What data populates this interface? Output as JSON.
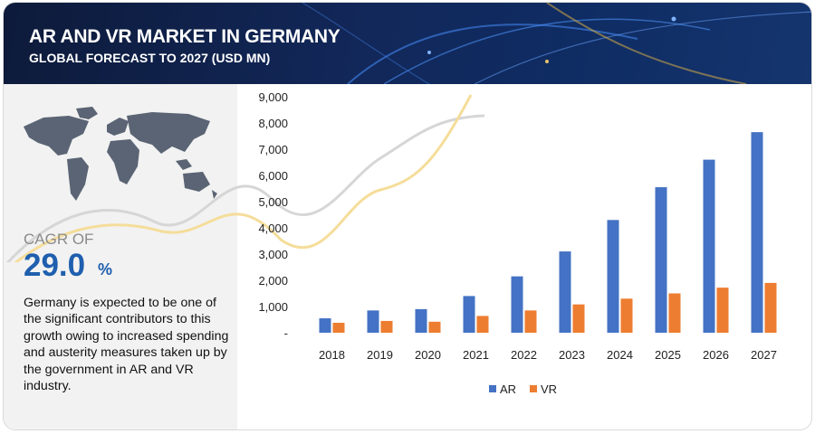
{
  "header": {
    "title": "AR AND VR MARKET IN GERMANY",
    "subtitle": "GLOBAL FORECAST TO 2027 (USD MN)"
  },
  "cagr": {
    "label": "CAGR OF",
    "value": "29.0",
    "unit": "%"
  },
  "description": "Germany is expected to be one of the significant contributors to this growth owing to increased spending and austerity measures taken up by the government in AR and VR industry.",
  "colors": {
    "ar": "#4472c4",
    "vr": "#ed7d31",
    "header": "#12285a",
    "accent": "#1f5fae"
  },
  "chart_data": {
    "type": "bar",
    "categories": [
      "2018",
      "2019",
      "2020",
      "2021",
      "2022",
      "2023",
      "2024",
      "2025",
      "2026",
      "2027"
    ],
    "series": [
      {
        "name": "AR",
        "values": [
          550,
          850,
          900,
          1400,
          2150,
          3100,
          4300,
          5550,
          6600,
          7650
        ]
      },
      {
        "name": "VR",
        "values": [
          380,
          450,
          420,
          640,
          850,
          1080,
          1300,
          1500,
          1720,
          1900
        ]
      }
    ],
    "ylim": [
      0,
      9000
    ],
    "yticks": [
      "-",
      "1,000",
      "2,000",
      "3,000",
      "4,000",
      "5,000",
      "6,000",
      "7,000",
      "8,000",
      "9,000"
    ],
    "legend": "bottom",
    "grid": false
  }
}
